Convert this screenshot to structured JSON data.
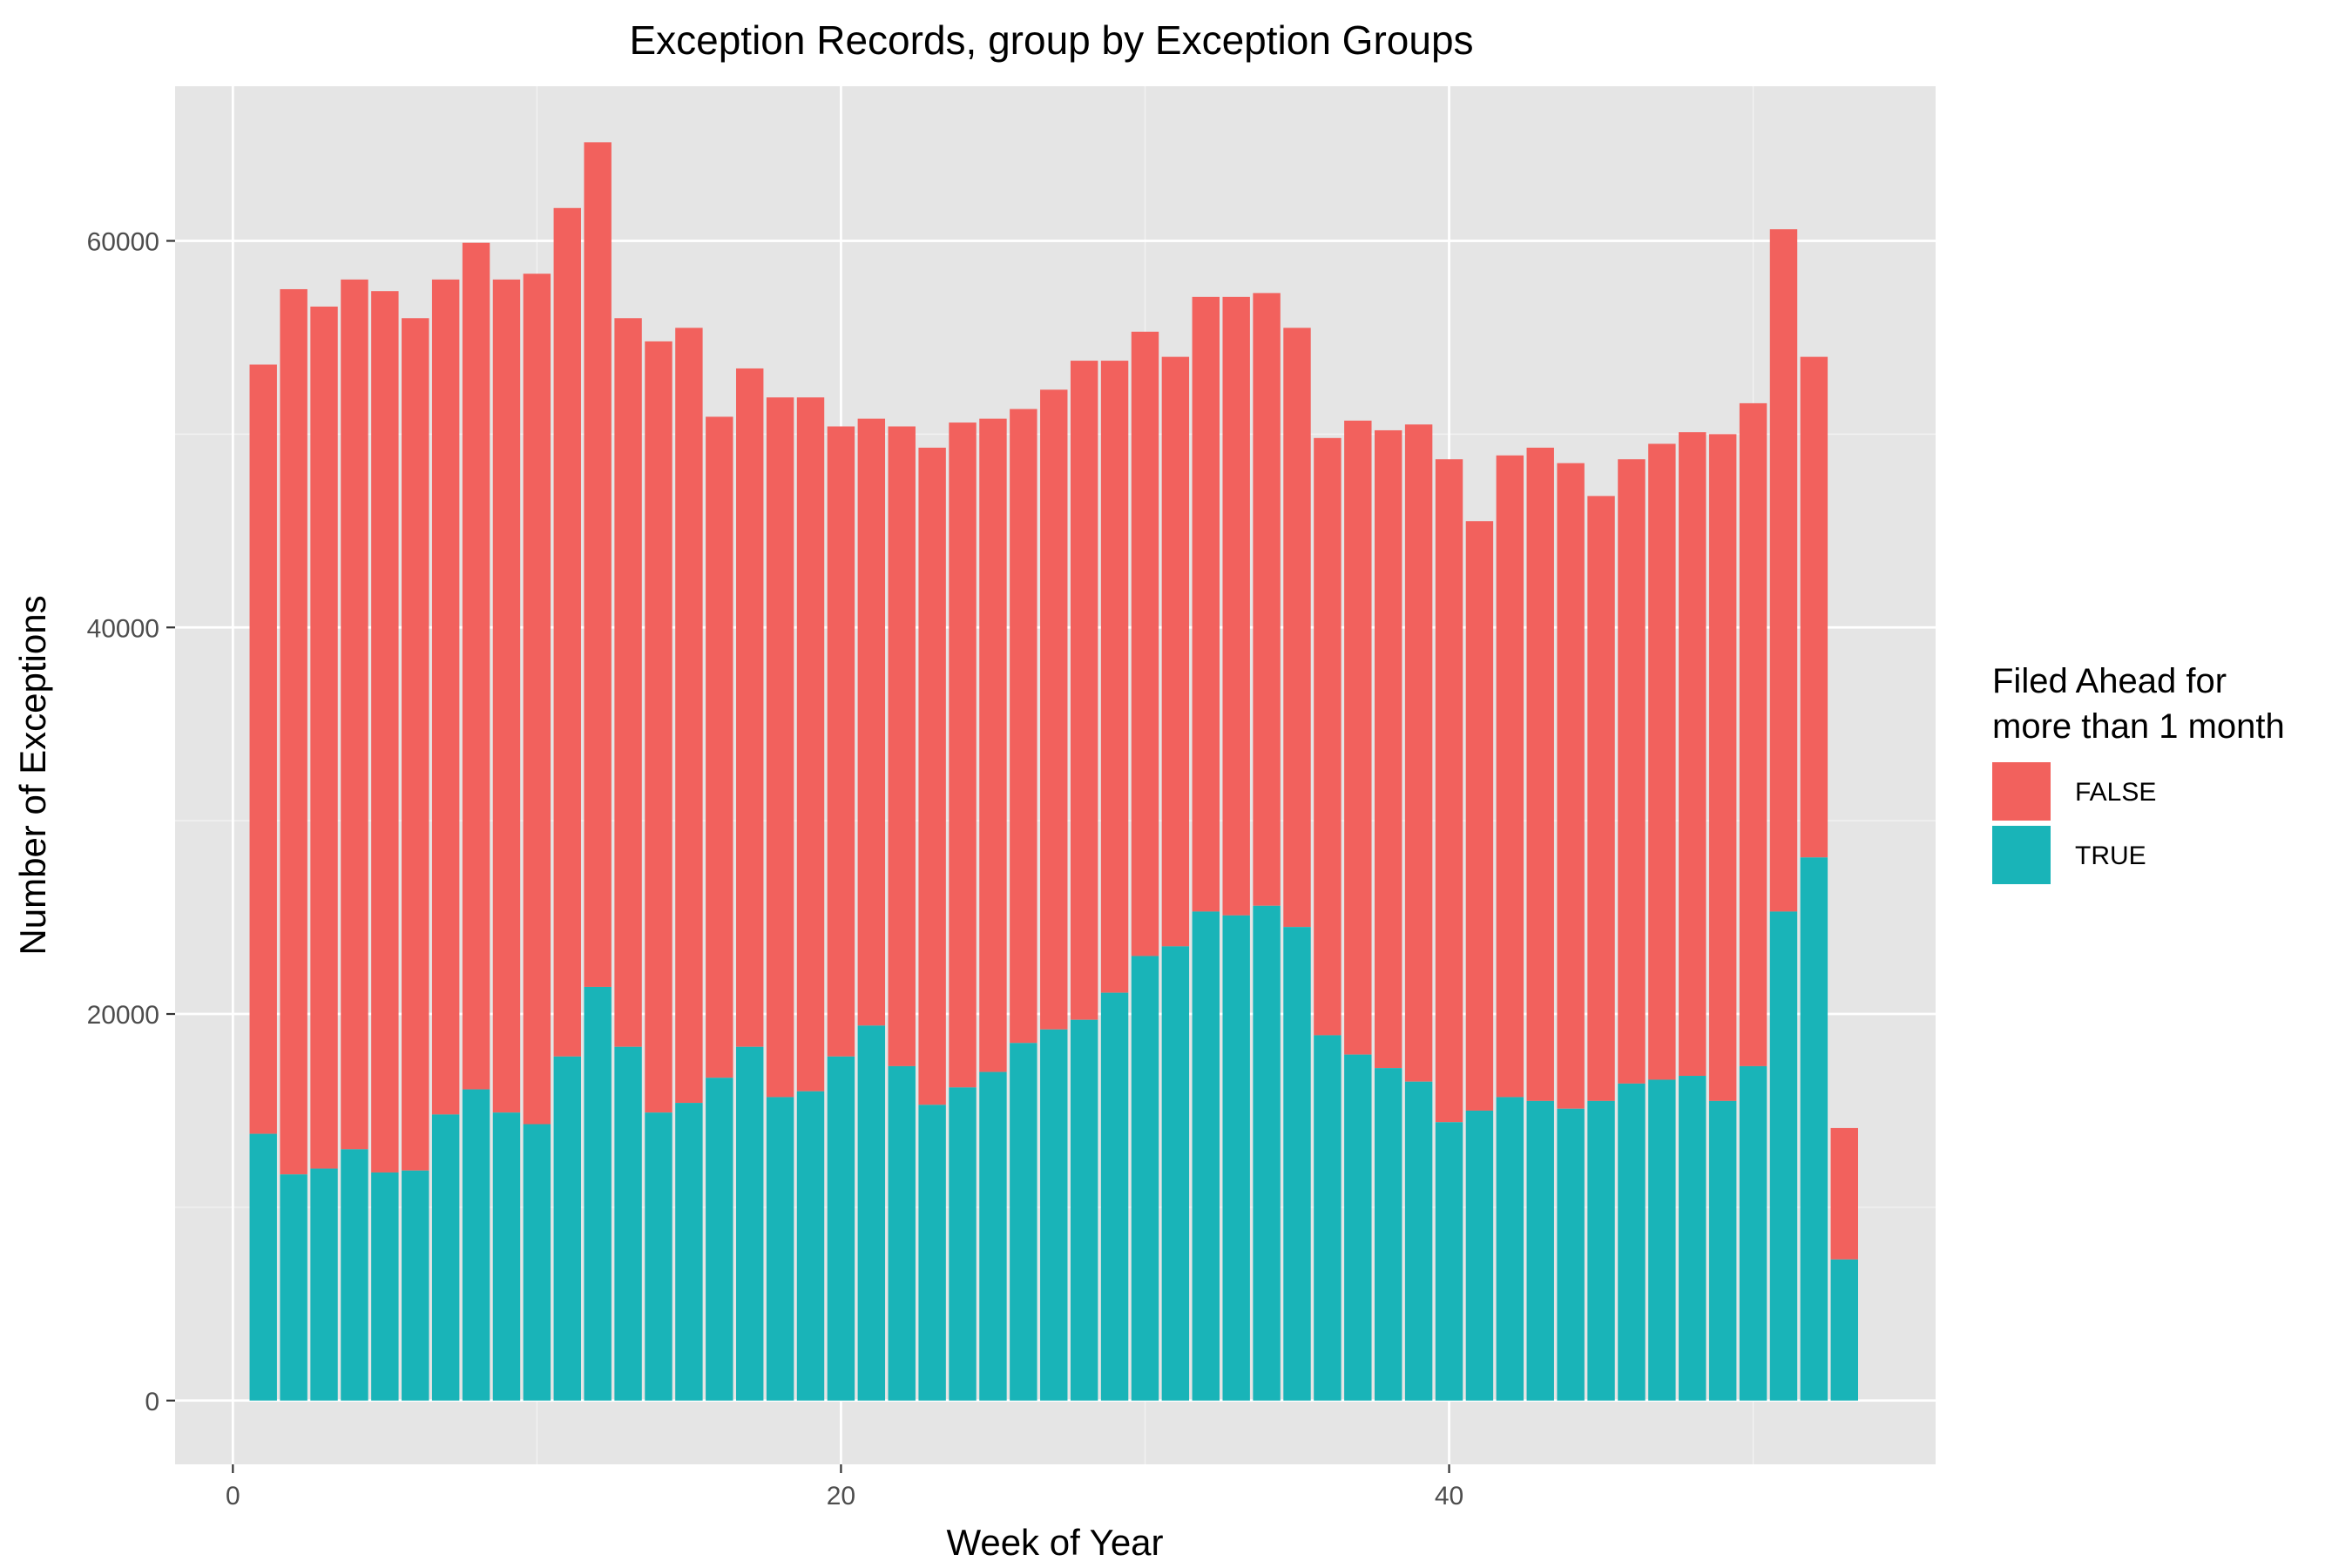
{
  "chart_data": {
    "type": "bar",
    "stacked": true,
    "title": "Exception Records, group by Exception Groups",
    "xlabel": "Week of Year",
    "ylabel": "Number of Exceptions",
    "xlim": [
      -1.9,
      56
    ],
    "ylim": [
      -3300,
      68000
    ],
    "x_ticks": [
      0,
      20,
      40
    ],
    "x_tick_labels": [
      "0",
      "20",
      "40"
    ],
    "y_ticks": [
      0,
      20000,
      40000,
      60000
    ],
    "y_tick_labels": [
      "0",
      "20000",
      "40000",
      "60000"
    ],
    "grid": true,
    "legend": {
      "title_lines": [
        "Filed Ahead for",
        "more than 1 month"
      ],
      "position": "right"
    },
    "x": [
      1,
      2,
      3,
      4,
      5,
      6,
      7,
      8,
      9,
      10,
      11,
      12,
      13,
      14,
      15,
      16,
      17,
      18,
      19,
      20,
      21,
      22,
      23,
      24,
      25,
      26,
      27,
      28,
      29,
      30,
      31,
      32,
      33,
      34,
      35,
      36,
      37,
      38,
      39,
      40,
      41,
      42,
      43,
      44,
      45,
      46,
      47,
      48,
      49,
      50,
      51,
      52,
      53
    ],
    "series": [
      {
        "name": "TRUE",
        "color": "#19b4b8",
        "values": [
          13800,
          11700,
          12000,
          13000,
          11800,
          11900,
          14800,
          16100,
          14900,
          14300,
          17800,
          21400,
          18300,
          14900,
          15400,
          16700,
          18300,
          15700,
          16000,
          17800,
          19400,
          17300,
          15300,
          16200,
          17000,
          18500,
          19200,
          19700,
          21100,
          23000,
          23500,
          25300,
          25100,
          25600,
          24500,
          18900,
          17900,
          17200,
          16500,
          14400,
          15000,
          15700,
          15500,
          15100,
          15500,
          16400,
          16600,
          16800,
          15500,
          17300,
          25300,
          28100,
          7300
        ]
      },
      {
        "name": "FALSE",
        "color": "#f2615d",
        "values": [
          39800,
          45800,
          44600,
          45000,
          45600,
          44100,
          43200,
          43800,
          43100,
          44000,
          43900,
          43700,
          37700,
          39900,
          40100,
          34200,
          35100,
          36200,
          35900,
          32600,
          31400,
          33100,
          34000,
          34400,
          33800,
          32800,
          33100,
          34100,
          32700,
          32300,
          30500,
          31800,
          32000,
          31700,
          31000,
          30900,
          32800,
          33000,
          34000,
          34300,
          30500,
          33200,
          33800,
          33400,
          31300,
          32300,
          32900,
          33300,
          34500,
          34300,
          35300,
          25900,
          6800
        ]
      }
    ]
  }
}
